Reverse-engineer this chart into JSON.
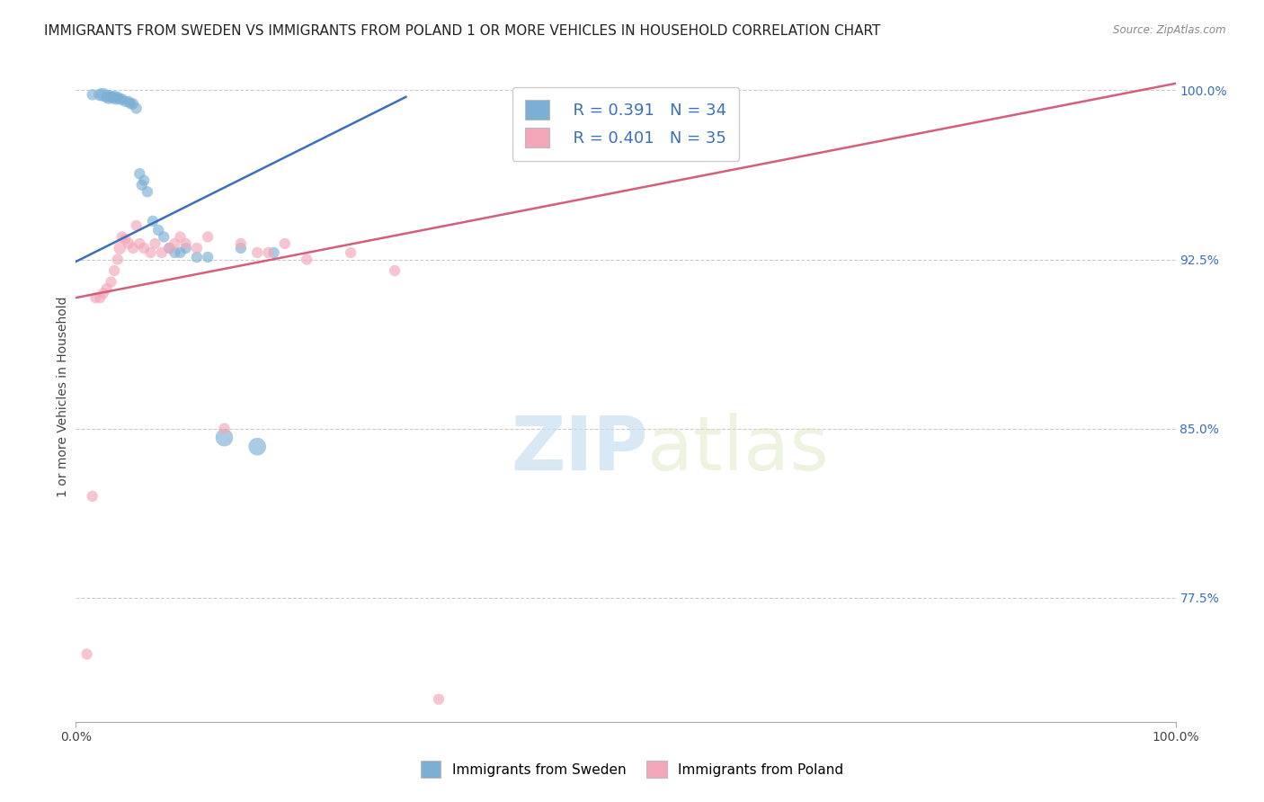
{
  "title": "IMMIGRANTS FROM SWEDEN VS IMMIGRANTS FROM POLAND 1 OR MORE VEHICLES IN HOUSEHOLD CORRELATION CHART",
  "source": "Source: ZipAtlas.com",
  "xlabel": "",
  "ylabel": "1 or more Vehicles in Household",
  "xlim": [
    0.0,
    1.0
  ],
  "ylim": [
    0.72,
    1.008
  ],
  "x_tick_labels": [
    "0.0%",
    "100.0%"
  ],
  "y_tick_labels_right": [
    "77.5%",
    "85.0%",
    "92.5%",
    "100.0%"
  ],
  "y_tick_values_right": [
    0.775,
    0.85,
    0.925,
    1.0
  ],
  "legend_R_sweden": "R = 0.391",
  "legend_N_sweden": "N = 34",
  "legend_R_poland": "R = 0.401",
  "legend_N_poland": "N = 35",
  "sweden_color": "#7bafd4",
  "poland_color": "#f4a7b9",
  "sweden_line_color": "#3a6fba",
  "poland_line_color": "#d45f7a",
  "legend_label_sweden": "Immigrants from Sweden",
  "legend_label_poland": "Immigrants from Poland",
  "sweden_line_x0": 0.0,
  "sweden_line_y0": 0.924,
  "sweden_line_x1": 0.3,
  "sweden_line_y1": 0.997,
  "poland_line_x0": 0.0,
  "poland_line_y0": 0.908,
  "poland_line_x1": 1.0,
  "poland_line_y1": 1.003,
  "sweden_scatter_x": [
    0.015,
    0.022,
    0.025,
    0.028,
    0.03,
    0.032,
    0.033,
    0.035,
    0.036,
    0.038,
    0.04,
    0.042,
    0.045,
    0.048,
    0.05,
    0.052,
    0.055,
    0.058,
    0.06,
    0.062,
    0.065,
    0.07,
    0.075,
    0.08,
    0.085,
    0.09,
    0.095,
    0.1,
    0.11,
    0.12,
    0.135,
    0.15,
    0.165,
    0.18
  ],
  "sweden_scatter_y": [
    0.998,
    0.998,
    0.998,
    0.997,
    0.997,
    0.997,
    0.997,
    0.997,
    0.996,
    0.997,
    0.996,
    0.996,
    0.995,
    0.995,
    0.994,
    0.994,
    0.992,
    0.963,
    0.958,
    0.96,
    0.955,
    0.942,
    0.938,
    0.935,
    0.93,
    0.928,
    0.928,
    0.93,
    0.926,
    0.926,
    0.846,
    0.93,
    0.842,
    0.928
  ],
  "sweden_dot_sizes": [
    80,
    100,
    120,
    80,
    130,
    80,
    80,
    100,
    80,
    80,
    80,
    80,
    80,
    80,
    80,
    80,
    80,
    80,
    80,
    80,
    80,
    80,
    80,
    80,
    80,
    80,
    80,
    80,
    80,
    80,
    200,
    80,
    200,
    80
  ],
  "poland_scatter_x": [
    0.01,
    0.015,
    0.018,
    0.022,
    0.025,
    0.028,
    0.032,
    0.035,
    0.038,
    0.04,
    0.042,
    0.045,
    0.048,
    0.052,
    0.055,
    0.058,
    0.062,
    0.068,
    0.072,
    0.078,
    0.085,
    0.09,
    0.095,
    0.1,
    0.11,
    0.12,
    0.135,
    0.15,
    0.165,
    0.175,
    0.19,
    0.21,
    0.25,
    0.29,
    0.33
  ],
  "poland_scatter_y": [
    0.75,
    0.82,
    0.908,
    0.908,
    0.91,
    0.912,
    0.915,
    0.92,
    0.925,
    0.93,
    0.935,
    0.934,
    0.932,
    0.93,
    0.94,
    0.932,
    0.93,
    0.928,
    0.932,
    0.928,
    0.93,
    0.932,
    0.935,
    0.932,
    0.93,
    0.935,
    0.85,
    0.932,
    0.928,
    0.928,
    0.932,
    0.925,
    0.928,
    0.92,
    0.73
  ],
  "poland_dot_sizes": [
    80,
    80,
    80,
    80,
    80,
    80,
    80,
    80,
    80,
    100,
    80,
    80,
    80,
    80,
    80,
    80,
    80,
    80,
    80,
    80,
    80,
    80,
    80,
    80,
    80,
    80,
    80,
    80,
    80,
    80,
    80,
    80,
    80,
    80,
    80
  ],
  "background_color": "#ffffff",
  "grid_color": "#cccccc",
  "title_fontsize": 11,
  "axis_fontsize": 10
}
